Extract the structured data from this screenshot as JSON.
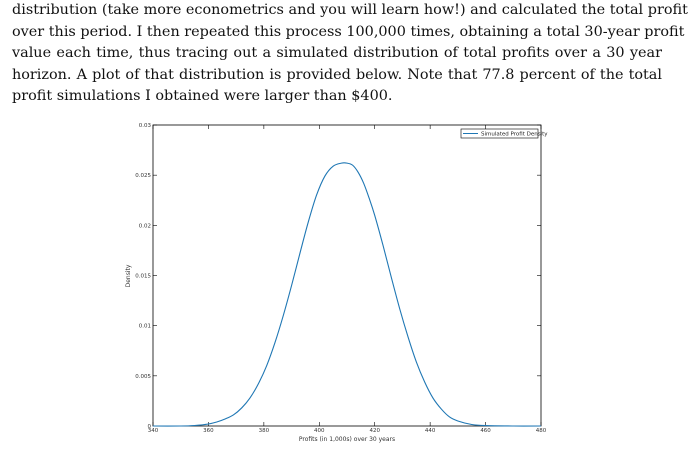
{
  "paragraph": {
    "lines": [
      "distribution (take more econometrics and you will learn how!) and calculated the total profit",
      "over this period. I then repeated this process 100,000 times, obtaining a total 30-year profit",
      "value each time, thus tracing out a simulated distribution of total profits over a 30 year",
      "horizon. A plot of that distribution is provided below. Note that 77.8 percent of the total",
      "profit simulations I obtained were larger than $400."
    ]
  },
  "chart_data": {
    "type": "line",
    "xlabel": "Profits (in 1,000s) over 30 years",
    "ylabel": "Density",
    "xlim": [
      340,
      480
    ],
    "ylim": [
      0,
      0.03
    ],
    "xticks": [
      340,
      360,
      380,
      400,
      420,
      440,
      460,
      480
    ],
    "xtick_labels": [
      "340",
      "360",
      "380",
      "400",
      "420",
      "440",
      "460",
      "480"
    ],
    "yticks": [
      0,
      0.005,
      0.01,
      0.015,
      0.02,
      0.025,
      0.03
    ],
    "ytick_labels": [
      "0",
      "0.005",
      "0.01",
      "0.015",
      "0.02",
      "0.025",
      "0.03"
    ],
    "grid": false,
    "legend_position": "top-right",
    "colors": {
      "line": "#1f77b4",
      "axis": "#000000"
    },
    "series": [
      {
        "name": "Simulated Profit Density",
        "x": [
          340,
          350,
          355,
          360,
          363,
          366,
          369,
          372,
          375,
          378,
          381,
          384,
          387,
          390,
          393,
          396,
          399,
          402,
          405,
          408,
          410,
          412,
          414,
          416,
          418,
          420,
          423,
          426,
          429,
          432,
          435,
          438,
          441,
          444,
          447,
          450,
          455,
          460,
          470,
          480
        ],
        "y": [
          0.0,
          0.0,
          5e-05,
          0.0002,
          0.0004,
          0.0007,
          0.0011,
          0.0018,
          0.0028,
          0.0042,
          0.006,
          0.0083,
          0.011,
          0.014,
          0.0172,
          0.0203,
          0.023,
          0.0249,
          0.0259,
          0.0262,
          0.0262,
          0.026,
          0.0253,
          0.0242,
          0.0227,
          0.021,
          0.018,
          0.0148,
          0.0117,
          0.0089,
          0.0064,
          0.0044,
          0.0028,
          0.0017,
          0.0009,
          0.0005,
          0.00015,
          4e-05,
          0.0,
          0.0
        ]
      }
    ]
  }
}
